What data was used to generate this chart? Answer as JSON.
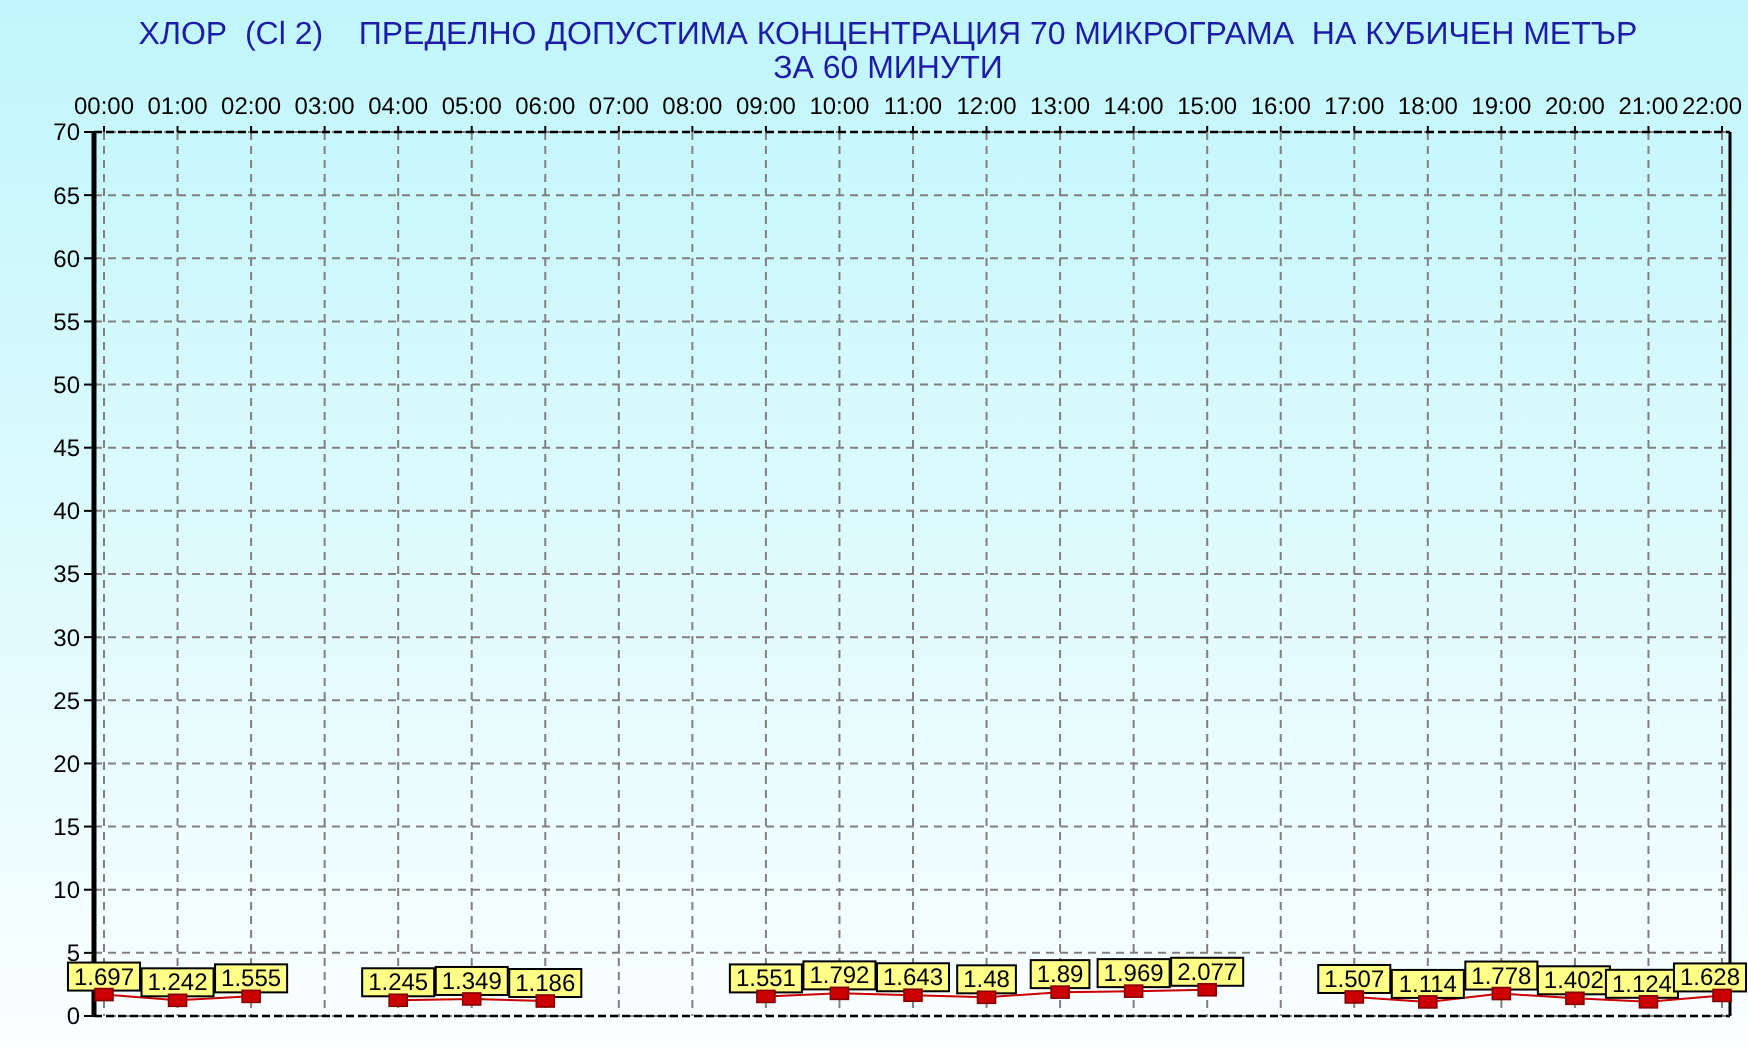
{
  "chart_data": {
    "type": "line",
    "title": "ХЛОР  (Cl 2)    ПРЕДЕЛНО ДОПУСТИМА КОНЦЕНТРАЦИЯ 70 МИКРОГРАМА  НА КУБИЧЕН МЕТЪР",
    "subtitle": "ЗА 60 МИНУТИ",
    "categories": [
      "00:00",
      "01:00",
      "02:00",
      "03:00",
      "04:00",
      "05:00",
      "06:00",
      "07:00",
      "08:00",
      "09:00",
      "10:00",
      "11:00",
      "12:00",
      "13:00",
      "14:00",
      "15:00",
      "16:00",
      "17:00",
      "18:00",
      "19:00",
      "20:00",
      "21:00",
      "22:00"
    ],
    "series": [
      {
        "color": "#cc0000",
        "values": [
          1.697,
          1.242,
          1.555,
          null,
          1.245,
          1.349,
          1.186,
          null,
          null,
          1.551,
          1.792,
          1.643,
          1.48,
          1.89,
          1.969,
          2.077,
          null,
          1.507,
          1.114,
          1.778,
          1.402,
          1.124,
          1.628
        ]
      }
    ],
    "ylim": [
      0,
      70
    ],
    "yticks": [
      0,
      5,
      10,
      15,
      20,
      25,
      30,
      35,
      40,
      45,
      50,
      55,
      60,
      65,
      70
    ],
    "grid": true,
    "marker": "square",
    "data_labels": true
  }
}
